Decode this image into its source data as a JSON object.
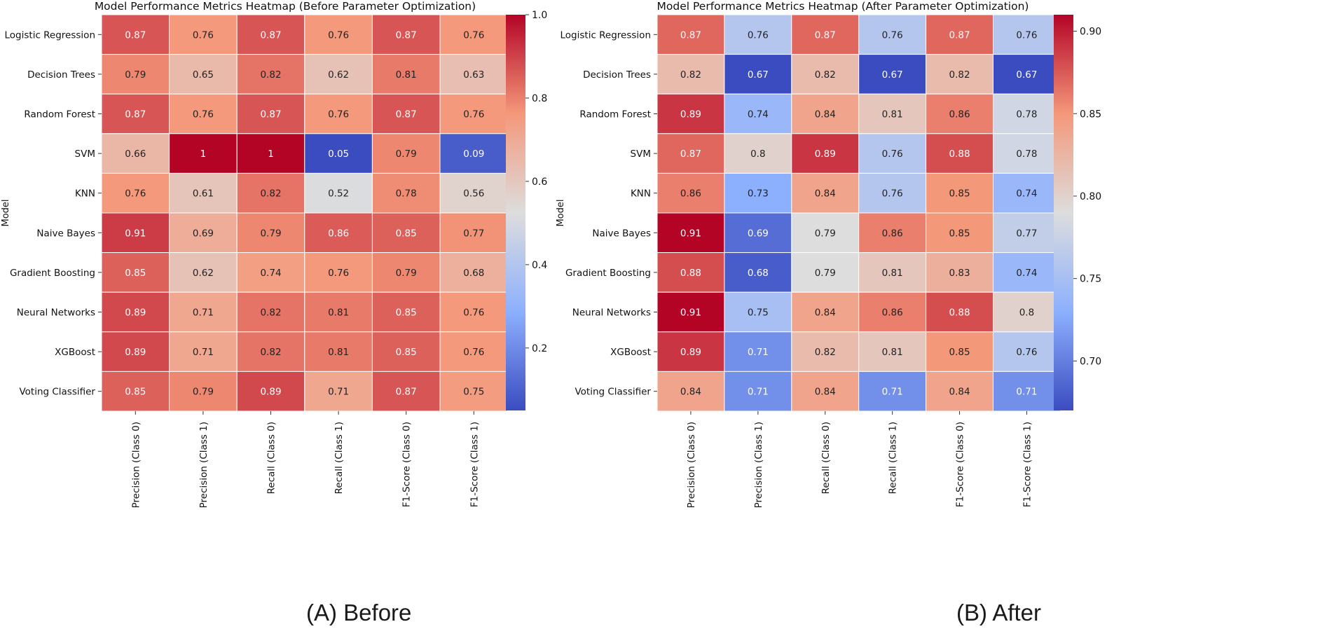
{
  "chart_data": [
    {
      "type": "heatmap",
      "title": "Model Performance Metrics Heatmap (Before Parameter Optimization)",
      "ylabel": "Model",
      "xlabel": "",
      "rows": [
        "Logistic Regression",
        "Decision Trees",
        "Random Forest",
        "SVM",
        "KNN",
        "Naive Bayes",
        "Gradient Boosting",
        "Neural Networks",
        "XGBoost",
        "Voting Classifier"
      ],
      "columns": [
        "Precision (Class 0)",
        "Precision (Class 1)",
        "Recall (Class 0)",
        "Recall (Class 1)",
        "F1-Score (Class 0)",
        "F1-Score (Class 1)"
      ],
      "values": [
        [
          0.87,
          0.76,
          0.87,
          0.76,
          0.87,
          0.76
        ],
        [
          0.79,
          0.65,
          0.82,
          0.62,
          0.81,
          0.63
        ],
        [
          0.87,
          0.76,
          0.87,
          0.76,
          0.87,
          0.76
        ],
        [
          0.66,
          1,
          1,
          0.05,
          0.79,
          0.09
        ],
        [
          0.76,
          0.61,
          0.82,
          0.52,
          0.78,
          0.56
        ],
        [
          0.91,
          0.69,
          0.79,
          0.86,
          0.85,
          0.77
        ],
        [
          0.85,
          0.62,
          0.74,
          0.76,
          0.79,
          0.68
        ],
        [
          0.89,
          0.71,
          0.82,
          0.81,
          0.85,
          0.76
        ],
        [
          0.89,
          0.71,
          0.82,
          0.81,
          0.85,
          0.76
        ],
        [
          0.85,
          0.79,
          0.89,
          0.71,
          0.87,
          0.75
        ]
      ],
      "colormap": "coolwarm",
      "vmin": 0.05,
      "vmax": 1.0,
      "colorbar_ticks": [
        1.0,
        0.8,
        0.6,
        0.4,
        0.2
      ],
      "colorbar_tick_labels": [
        "1.0",
        "0.8",
        "0.6",
        "0.4",
        "0.2"
      ],
      "caption_letter": "(A)",
      "caption_word": "Before"
    },
    {
      "type": "heatmap",
      "title": "Model Performance Metrics Heatmap (After Parameter Optimization)",
      "ylabel": "Model",
      "xlabel": "",
      "rows": [
        "Logistic Regression",
        "Decision Trees",
        "Random Forest",
        "SVM",
        "KNN",
        "Naive Bayes",
        "Gradient Boosting",
        "Neural Networks",
        "XGBoost",
        "Voting Classifier"
      ],
      "columns": [
        "Precision (Class 0)",
        "Precision (Class 1)",
        "Recall (Class 0)",
        "Recall (Class 1)",
        "F1-Score (Class 0)",
        "F1-Score (Class 1)"
      ],
      "values": [
        [
          0.87,
          0.76,
          0.87,
          0.76,
          0.87,
          0.76
        ],
        [
          0.82,
          0.67,
          0.82,
          0.67,
          0.82,
          0.67
        ],
        [
          0.89,
          0.74,
          0.84,
          0.81,
          0.86,
          0.78
        ],
        [
          0.87,
          0.8,
          0.89,
          0.76,
          0.88,
          0.78
        ],
        [
          0.86,
          0.73,
          0.84,
          0.76,
          0.85,
          0.74
        ],
        [
          0.91,
          0.69,
          0.79,
          0.86,
          0.85,
          0.77
        ],
        [
          0.88,
          0.68,
          0.79,
          0.81,
          0.83,
          0.74
        ],
        [
          0.91,
          0.75,
          0.84,
          0.86,
          0.88,
          0.8
        ],
        [
          0.89,
          0.71,
          0.82,
          0.81,
          0.85,
          0.76
        ],
        [
          0.84,
          0.71,
          0.84,
          0.71,
          0.84,
          0.71
        ]
      ],
      "colormap": "coolwarm",
      "vmin": 0.67,
      "vmax": 0.91,
      "colorbar_ticks": [
        0.9,
        0.85,
        0.8,
        0.75,
        0.7
      ],
      "colorbar_tick_labels": [
        "0.90",
        "0.85",
        "0.80",
        "0.75",
        "0.70"
      ],
      "caption_letter": "(B)",
      "caption_word": "After"
    }
  ],
  "captions": {
    "a": "(A) Before",
    "b": "(B) After"
  }
}
